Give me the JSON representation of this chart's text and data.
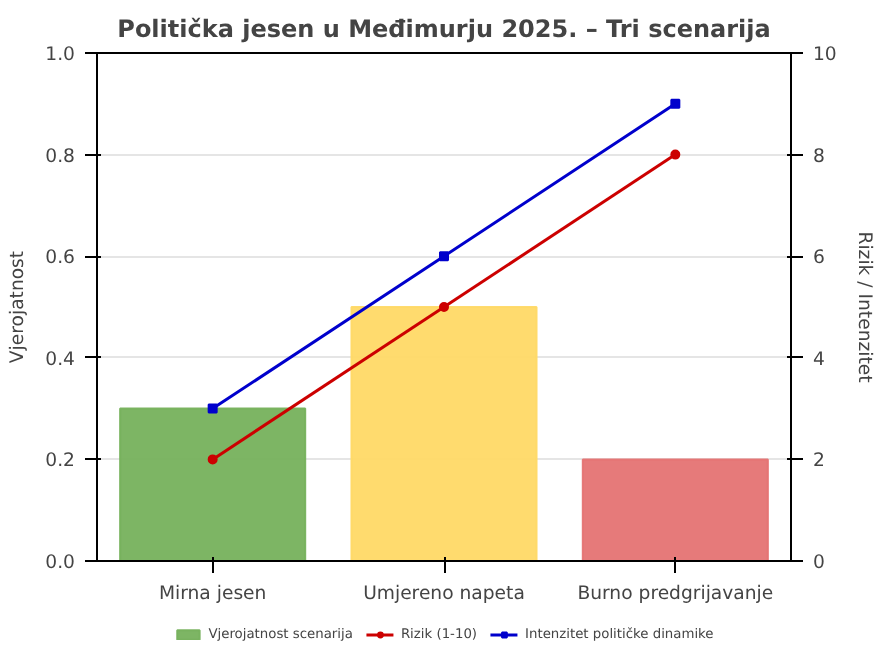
{
  "chart_data": {
    "type": "bar",
    "title": "Politička jesen u Međimurju 2025. – Tri scenarija",
    "categories": [
      "Mirna jesen",
      "Umjereno napeta",
      "Burno predgrijavanje"
    ],
    "series": [
      {
        "name": "Vjerojatnost scenarija",
        "color": "#76b15c",
        "values": [
          0.3,
          0.5,
          0.2
        ],
        "colors": [
          "#76b15c",
          "#ffd966",
          "#e57373"
        ]
      },
      {
        "name": "Rizik (1-10)",
        "type": "line",
        "axis": "y2",
        "color": "#cc0000",
        "values": [
          2,
          5,
          8
        ]
      },
      {
        "name": "Intenzitet političke dinamike",
        "type": "line",
        "axis": "y2",
        "color": "#0000cc",
        "marker": "square",
        "values": [
          3,
          6,
          9
        ]
      }
    ],
    "ylabel": "Vjerojatnost",
    "y2label": "Rizik / Intenzitet",
    "ylim": [
      0,
      1.0
    ],
    "yticks": [
      {
        "value": 0,
        "label": "0.0"
      },
      {
        "value": 0.2,
        "label": "0.2"
      },
      {
        "value": 0.4,
        "label": "0.4"
      },
      {
        "value": 0.6,
        "label": "0.6"
      },
      {
        "value": 0.8,
        "label": "0.8"
      },
      {
        "value": 1.0,
        "label": "1.0"
      }
    ],
    "y2lim": [
      0,
      10
    ],
    "y2ticks": [
      0,
      2,
      4,
      6,
      8,
      10
    ],
    "grid": "y",
    "legend": "bottom",
    "marker": "circle"
  }
}
